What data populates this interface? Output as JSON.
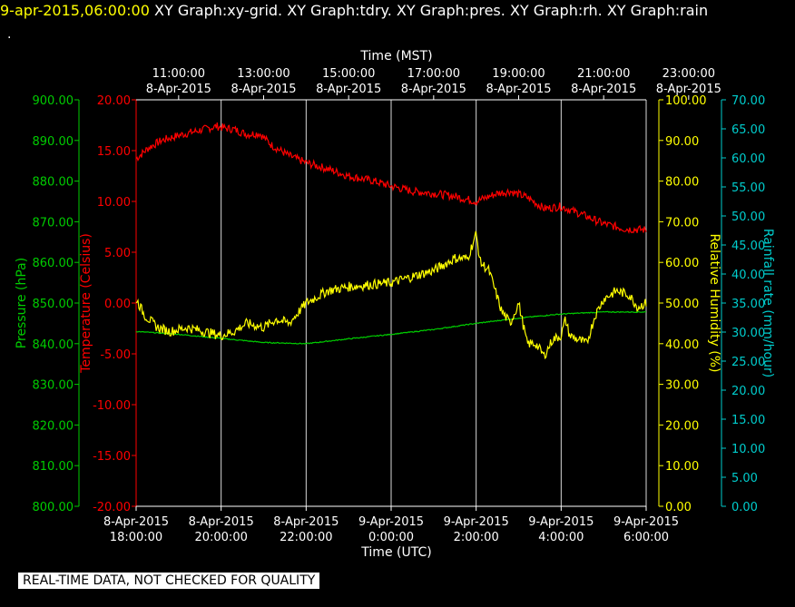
{
  "header": {
    "timestamp": "9-apr-2015,06:00:00",
    "graphs": [
      "XY Graph:xy-grid.",
      "XY Graph:tdry.",
      "XY Graph:pres.",
      "XY Graph:rh.",
      "XY Graph:rain"
    ],
    "dot": "."
  },
  "disclaimer": "REAL-TIME DATA, NOT CHECKED FOR QUALITY",
  "chart_data": {
    "type": "line",
    "grid": true,
    "background": "#000000",
    "x_top": {
      "title": "Time (MST)",
      "ticks": [
        {
          "time": "11:00:00",
          "date": "8-Apr-2015"
        },
        {
          "time": "13:00:00",
          "date": "8-Apr-2015"
        },
        {
          "time": "15:00:00",
          "date": "8-Apr-2015"
        },
        {
          "time": "17:00:00",
          "date": "8-Apr-2015"
        },
        {
          "time": "19:00:00",
          "date": "8-Apr-2015"
        },
        {
          "time": "21:00:00",
          "date": "8-Apr-2015"
        },
        {
          "time": "23:00:00",
          "date": "8-Apr-2015"
        }
      ]
    },
    "x_bottom": {
      "title": "Time (UTC)",
      "range": [
        "2015-04-08 18:00",
        "2015-04-09 06:00"
      ],
      "ticks": [
        {
          "date": "8-Apr-2015",
          "time": "18:00:00"
        },
        {
          "date": "8-Apr-2015",
          "time": "20:00:00"
        },
        {
          "date": "8-Apr-2015",
          "time": "22:00:00"
        },
        {
          "date": "9-Apr-2015",
          "time": "0:00:00"
        },
        {
          "date": "9-Apr-2015",
          "time": "2:00:00"
        },
        {
          "date": "9-Apr-2015",
          "time": "4:00:00"
        },
        {
          "date": "9-Apr-2015",
          "time": "6:00:00"
        }
      ]
    },
    "axes": {
      "pressure": {
        "label": "Pressure (hPa)",
        "color": "#00cc00",
        "range": [
          800,
          900
        ],
        "ticks": [
          "800.00",
          "810.00",
          "820.00",
          "830.00",
          "840.00",
          "850.00",
          "860.00",
          "870.00",
          "880.00",
          "890.00",
          "900.00"
        ]
      },
      "temperature": {
        "label": "Temperature (Celsius)",
        "color": "#ff0000",
        "range": [
          -20,
          20
        ],
        "ticks": [
          "-20.00",
          "-15.00",
          "-10.00",
          "-5.00",
          "0.00",
          "5.00",
          "10.00",
          "15.00",
          "20.00"
        ]
      },
      "humidity": {
        "label": "Relative Humidity (%)",
        "color": "#ffff00",
        "range": [
          0,
          100
        ],
        "ticks": [
          "0.00",
          "10.00",
          "20.00",
          "30.00",
          "40.00",
          "50.00",
          "60.00",
          "70.00",
          "80.00",
          "90.00",
          "100.00"
        ]
      },
      "rainfall": {
        "label": "Rainfall rate (mm/hour)",
        "color": "#00cccc",
        "range": [
          0,
          70
        ],
        "ticks": [
          "0.00",
          "5.00",
          "10.00",
          "15.00",
          "20.00",
          "25.00",
          "30.00",
          "35.00",
          "40.00",
          "45.00",
          "50.00",
          "55.00",
          "60.00",
          "65.00",
          "70.00"
        ]
      }
    },
    "series": [
      {
        "axis": "temperature",
        "color": "#ff0000",
        "noise": 0.4,
        "x": [
          0,
          0.3,
          0.6,
          1.0,
          1.5,
          1.9,
          2.1,
          2.3,
          2.6,
          2.9,
          3.2,
          3.6,
          4.0,
          4.5,
          5.0,
          5.6,
          6.0,
          6.5,
          7.0,
          7.5,
          8.0,
          8.5,
          8.8,
          9.2,
          9.6,
          10.0,
          10.5,
          11.0,
          11.5,
          12.0
        ],
        "y": [
          14.2,
          15.3,
          16.0,
          16.5,
          17.0,
          17.4,
          17.2,
          17.1,
          16.6,
          16.7,
          15.5,
          14.5,
          13.8,
          13.2,
          12.5,
          12.0,
          11.5,
          11.0,
          10.8,
          10.5,
          10.0,
          10.8,
          11.0,
          10.4,
          9.3,
          9.5,
          8.7,
          7.8,
          7.3,
          7.2
        ]
      },
      {
        "axis": "pressure",
        "color": "#00cc00",
        "noise": 0.12,
        "x": [
          0,
          1,
          2,
          3,
          4,
          5,
          6,
          7,
          8,
          9,
          10,
          11,
          12
        ],
        "y": [
          843.0,
          842.3,
          841.3,
          840.3,
          840.0,
          841.2,
          842.3,
          843.5,
          845.0,
          846.3,
          847.3,
          847.8,
          847.8
        ]
      },
      {
        "axis": "humidity",
        "color": "#ffff00",
        "noise": 1.2,
        "x": [
          0,
          0.2,
          0.5,
          0.8,
          1.2,
          1.6,
          2.0,
          2.3,
          2.6,
          3.0,
          3.3,
          3.6,
          4.0,
          4.5,
          5.0,
          5.5,
          6.0,
          6.5,
          7.0,
          7.5,
          7.8,
          8.0,
          8.1,
          8.3,
          8.6,
          8.8,
          9.0,
          9.2,
          9.4,
          9.6,
          9.8,
          10.0,
          10.1,
          10.2,
          10.4,
          10.6,
          10.8,
          11.0,
          11.3,
          11.6,
          11.8,
          12.0
        ],
        "y": [
          51,
          47,
          44,
          43,
          44,
          43,
          42,
          43,
          45,
          44,
          46,
          45,
          50,
          53,
          54,
          54.5,
          55,
          56.5,
          58,
          61,
          61,
          67,
          60,
          58,
          48,
          45,
          50,
          40,
          40,
          37,
          41,
          42,
          46,
          42,
          41,
          40,
          47,
          51,
          53,
          52,
          49,
          50
        ]
      }
    ]
  }
}
